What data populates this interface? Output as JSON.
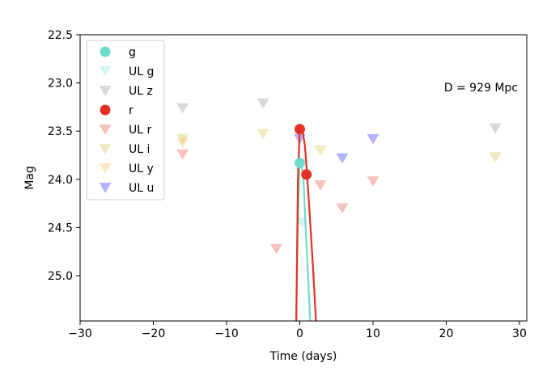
{
  "chart_data": {
    "type": "scatter",
    "title": "",
    "xlabel": "Time (days)",
    "ylabel": "Mag",
    "xlim": [
      -30,
      31
    ],
    "ylim": [
      25.47,
      22.5
    ],
    "y_inverted": true,
    "xticks": [
      -30,
      -20,
      -10,
      0,
      10,
      20,
      30
    ],
    "xtick_labels": [
      "−30",
      "−20",
      "−10",
      "0",
      "10",
      "20",
      "30"
    ],
    "yticks": [
      22.5,
      23.0,
      23.5,
      24.0,
      24.5,
      25.0
    ],
    "ytick_labels": [
      "22.5",
      "23.0",
      "23.5",
      "24.0",
      "24.5",
      "25.0"
    ],
    "grid": false,
    "legend_position": "top-left",
    "annotation": "D = 929 Mpc",
    "series": [
      {
        "name": "g",
        "kind": "detection",
        "color": "#72dccb",
        "x": [
          0.0
        ],
        "y": [
          23.83
        ]
      },
      {
        "name": "UL g",
        "kind": "upper-limit",
        "color": "#72dccb",
        "x": [
          0.3
        ],
        "y": [
          24.45
        ]
      },
      {
        "name": "UL z",
        "kind": "upper-limit",
        "color": "#808080",
        "x": [
          -16.0,
          -5.0,
          26.7
        ],
        "y": [
          23.26,
          23.21,
          23.47
        ]
      },
      {
        "name": "r",
        "kind": "detection",
        "color": "#e43126",
        "x": [
          0.0,
          0.9
        ],
        "y": [
          23.48,
          23.95
        ]
      },
      {
        "name": "UL r",
        "kind": "upper-limit",
        "color": "#e43126",
        "x": [
          -16.0,
          -3.2,
          2.8,
          5.8,
          10.0
        ],
        "y": [
          23.74,
          24.72,
          24.06,
          24.3,
          24.02
        ]
      },
      {
        "name": "UL i",
        "kind": "upper-limit",
        "color": "#bcbd22",
        "x": [
          -16.0,
          -5.0,
          2.8,
          26.7
        ],
        "y": [
          23.58,
          23.53,
          23.7,
          23.77
        ]
      },
      {
        "name": "UL y",
        "kind": "upper-limit",
        "color": "#f5b041",
        "x": [
          -16.0
        ],
        "y": [
          23.62
        ]
      },
      {
        "name": "UL u",
        "kind": "upper-limit",
        "color": "#0000ff",
        "x": [
          0.0,
          5.8,
          10.0
        ],
        "y": [
          23.58,
          23.78,
          23.58
        ]
      }
    ],
    "fit_curves": [
      {
        "name": "g-fit",
        "color": "#72dccb",
        "x": [
          -0.5,
          -0.3,
          -0.05,
          0.2,
          0.5,
          0.8,
          1.1,
          1.5
        ],
        "y": [
          25.6,
          24.6,
          23.85,
          23.82,
          24.0,
          24.5,
          24.95,
          25.6
        ]
      },
      {
        "name": "r-fit",
        "color": "#e43126",
        "x": [
          -0.5,
          -0.25,
          0.0,
          0.35,
          0.7,
          1.0,
          1.3,
          1.8,
          2.3
        ],
        "y": [
          25.6,
          24.0,
          23.45,
          23.48,
          23.65,
          23.95,
          24.3,
          24.9,
          25.6
        ]
      }
    ]
  }
}
